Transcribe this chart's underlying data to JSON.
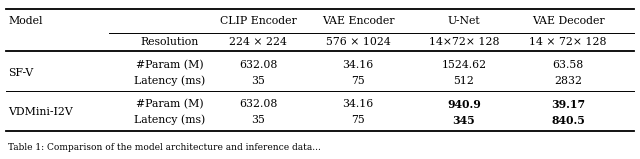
{
  "col_headers_top": [
    "CLIP Encoder",
    "VAE Encoder",
    "U-Net",
    "VAE Decoder"
  ],
  "col_headers_sub": [
    "224 × 224",
    "576 × 1024",
    "14×72× 128",
    "14 × 72× 128"
  ],
  "row_groups": [
    {
      "model": "SF-V",
      "rows": [
        {
          "metric": "#Param (M)",
          "values": [
            "632.08",
            "34.16",
            "1524.62",
            "63.58"
          ],
          "bold": [
            false,
            false,
            false,
            false
          ]
        },
        {
          "metric": "Latency (ms)",
          "values": [
            "35",
            "75",
            "512",
            "2832"
          ],
          "bold": [
            false,
            false,
            false,
            false
          ]
        }
      ]
    },
    {
      "model": "VDMini-I2V",
      "rows": [
        {
          "metric": "#Param (M)",
          "values": [
            "632.08",
            "34.16",
            "940.9",
            "39.17"
          ],
          "bold": [
            false,
            false,
            true,
            true
          ]
        },
        {
          "metric": "Latency (ms)",
          "values": [
            "35",
            "75",
            "345",
            "840.5"
          ],
          "bold": [
            false,
            false,
            true,
            true
          ]
        }
      ]
    }
  ],
  "font_size": 7.8,
  "caption": "Table 1: Comparison of the model architecture and inference data..."
}
